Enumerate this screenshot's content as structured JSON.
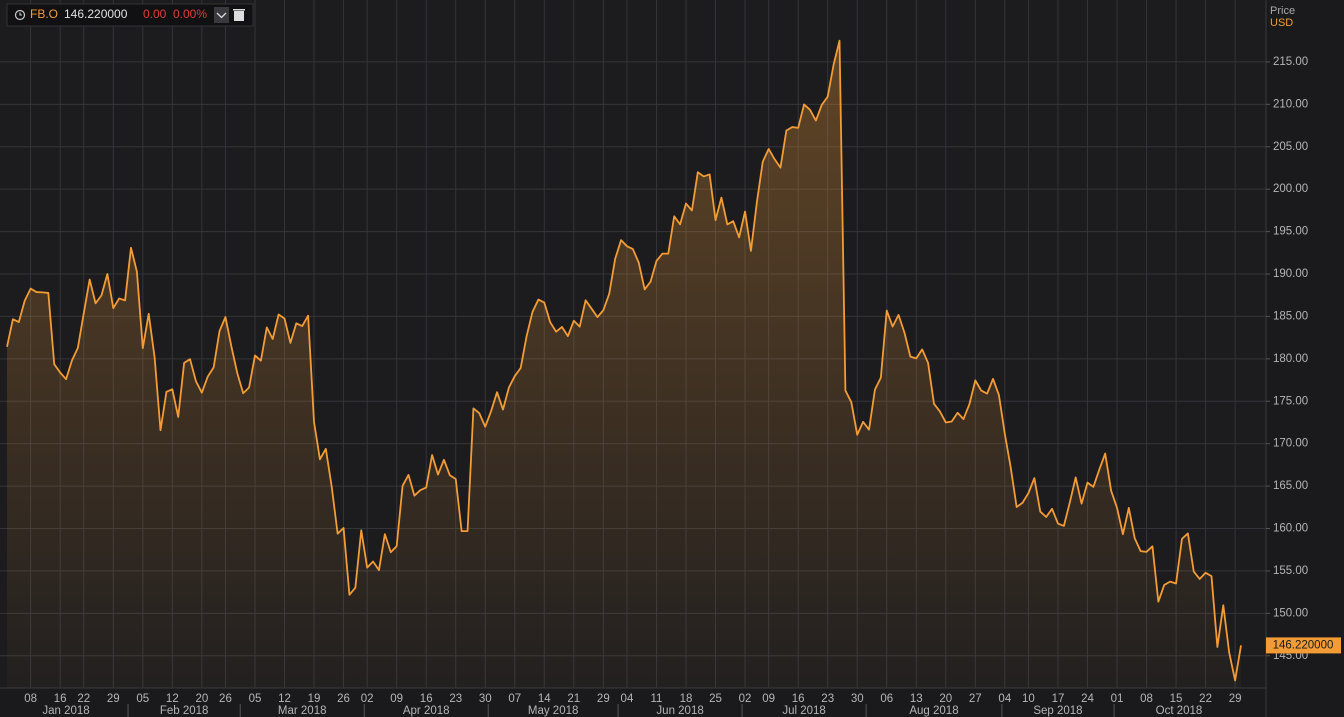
{
  "header": {
    "symbol": "FB.O",
    "price": "146.220000",
    "change": "0.00",
    "change_pct": "0.00%"
  },
  "chart_data": {
    "type": "area-line",
    "y_axis_label": "Price",
    "currency": "USD",
    "grid": true,
    "ylim": [
      141.2,
      222.3
    ],
    "yticks": [
      {
        "value": 145,
        "label": "145.00"
      },
      {
        "value": 150,
        "label": "150.00"
      },
      {
        "value": 155,
        "label": "155.00"
      },
      {
        "value": 160,
        "label": "160.00"
      },
      {
        "value": 165,
        "label": "165.00"
      },
      {
        "value": 170,
        "label": "170.00"
      },
      {
        "value": 175,
        "label": "175.00"
      },
      {
        "value": 180,
        "label": "180.00"
      },
      {
        "value": 185,
        "label": "185.00"
      },
      {
        "value": 190,
        "label": "190.00"
      },
      {
        "value": 195,
        "label": "195.00"
      },
      {
        "value": 200,
        "label": "200.00"
      },
      {
        "value": 205,
        "label": "205.00"
      },
      {
        "value": 210,
        "label": "210.00"
      },
      {
        "value": 215,
        "label": "215.00"
      }
    ],
    "xticks": [
      {
        "value": "2018-01-08",
        "label": "08"
      },
      {
        "value": "2018-01-16",
        "label": "16"
      },
      {
        "value": "2018-01-22",
        "label": "22"
      },
      {
        "value": "2018-01-29",
        "label": "29"
      },
      {
        "value": "2018-02-05",
        "label": "05"
      },
      {
        "value": "2018-02-12",
        "label": "12"
      },
      {
        "value": "2018-02-20",
        "label": "20"
      },
      {
        "value": "2018-02-26",
        "label": "26"
      },
      {
        "value": "2018-03-05",
        "label": "05"
      },
      {
        "value": "2018-03-12",
        "label": "12"
      },
      {
        "value": "2018-03-19",
        "label": "19"
      },
      {
        "value": "2018-03-26",
        "label": "26"
      },
      {
        "value": "2018-04-02",
        "label": "02"
      },
      {
        "value": "2018-04-09",
        "label": "09"
      },
      {
        "value": "2018-04-16",
        "label": "16"
      },
      {
        "value": "2018-04-23",
        "label": "23"
      },
      {
        "value": "2018-04-30",
        "label": "30"
      },
      {
        "value": "2018-05-07",
        "label": "07"
      },
      {
        "value": "2018-05-14",
        "label": "14"
      },
      {
        "value": "2018-05-21",
        "label": "21"
      },
      {
        "value": "2018-05-29",
        "label": "29"
      },
      {
        "value": "2018-06-04",
        "label": "04"
      },
      {
        "value": "2018-06-11",
        "label": "11"
      },
      {
        "value": "2018-06-18",
        "label": "18"
      },
      {
        "value": "2018-06-25",
        "label": "25"
      },
      {
        "value": "2018-07-02",
        "label": "02"
      },
      {
        "value": "2018-07-09",
        "label": "09"
      },
      {
        "value": "2018-07-16",
        "label": "16"
      },
      {
        "value": "2018-07-23",
        "label": "23"
      },
      {
        "value": "2018-07-30",
        "label": "30"
      },
      {
        "value": "2018-08-06",
        "label": "06"
      },
      {
        "value": "2018-08-13",
        "label": "13"
      },
      {
        "value": "2018-08-20",
        "label": "20"
      },
      {
        "value": "2018-08-27",
        "label": "27"
      },
      {
        "value": "2018-09-04",
        "label": "04"
      },
      {
        "value": "2018-09-10",
        "label": "10"
      },
      {
        "value": "2018-09-17",
        "label": "17"
      },
      {
        "value": "2018-09-24",
        "label": "24"
      },
      {
        "value": "2018-10-01",
        "label": "01"
      },
      {
        "value": "2018-10-08",
        "label": "08"
      },
      {
        "value": "2018-10-15",
        "label": "15"
      },
      {
        "value": "2018-10-22",
        "label": "22"
      },
      {
        "value": "2018-10-29",
        "label": "29"
      }
    ],
    "months": [
      {
        "value": "2018-01",
        "label": "Jan 2018"
      },
      {
        "value": "2018-02",
        "label": "Feb 2018"
      },
      {
        "value": "2018-03",
        "label": "Mar 2018"
      },
      {
        "value": "2018-04",
        "label": "Apr 2018"
      },
      {
        "value": "2018-05",
        "label": "May 2018"
      },
      {
        "value": "2018-06",
        "label": "Jun 2018"
      },
      {
        "value": "2018-07",
        "label": "Jul 2018"
      },
      {
        "value": "2018-08",
        "label": "Aug 2018"
      },
      {
        "value": "2018-09",
        "label": "Sep 2018"
      },
      {
        "value": "2018-10",
        "label": "Oct 2018"
      }
    ],
    "x": [
      "2018-01-02",
      "2018-01-03",
      "2018-01-04",
      "2018-01-05",
      "2018-01-08",
      "2018-01-09",
      "2018-01-10",
      "2018-01-11",
      "2018-01-12",
      "2018-01-16",
      "2018-01-17",
      "2018-01-18",
      "2018-01-19",
      "2018-01-22",
      "2018-01-23",
      "2018-01-24",
      "2018-01-25",
      "2018-01-26",
      "2018-01-29",
      "2018-01-30",
      "2018-01-31",
      "2018-02-01",
      "2018-02-02",
      "2018-02-05",
      "2018-02-06",
      "2018-02-07",
      "2018-02-08",
      "2018-02-09",
      "2018-02-12",
      "2018-02-13",
      "2018-02-14",
      "2018-02-15",
      "2018-02-16",
      "2018-02-20",
      "2018-02-21",
      "2018-02-22",
      "2018-02-23",
      "2018-02-26",
      "2018-02-27",
      "2018-02-28",
      "2018-03-01",
      "2018-03-02",
      "2018-03-05",
      "2018-03-06",
      "2018-03-07",
      "2018-03-08",
      "2018-03-09",
      "2018-03-12",
      "2018-03-13",
      "2018-03-14",
      "2018-03-15",
      "2018-03-16",
      "2018-03-19",
      "2018-03-20",
      "2018-03-21",
      "2018-03-22",
      "2018-03-23",
      "2018-03-26",
      "2018-03-27",
      "2018-03-28",
      "2018-03-29",
      "2018-04-02",
      "2018-04-03",
      "2018-04-04",
      "2018-04-05",
      "2018-04-06",
      "2018-04-09",
      "2018-04-10",
      "2018-04-11",
      "2018-04-12",
      "2018-04-13",
      "2018-04-16",
      "2018-04-17",
      "2018-04-18",
      "2018-04-19",
      "2018-04-20",
      "2018-04-23",
      "2018-04-24",
      "2018-04-25",
      "2018-04-26",
      "2018-04-27",
      "2018-04-30",
      "2018-05-01",
      "2018-05-02",
      "2018-05-03",
      "2018-05-04",
      "2018-05-07",
      "2018-05-08",
      "2018-05-09",
      "2018-05-10",
      "2018-05-11",
      "2018-05-14",
      "2018-05-15",
      "2018-05-16",
      "2018-05-17",
      "2018-05-18",
      "2018-05-21",
      "2018-05-22",
      "2018-05-23",
      "2018-05-24",
      "2018-05-25",
      "2018-05-29",
      "2018-05-30",
      "2018-05-31",
      "2018-06-01",
      "2018-06-04",
      "2018-06-05",
      "2018-06-06",
      "2018-06-07",
      "2018-06-08",
      "2018-06-11",
      "2018-06-12",
      "2018-06-13",
      "2018-06-14",
      "2018-06-15",
      "2018-06-18",
      "2018-06-19",
      "2018-06-20",
      "2018-06-21",
      "2018-06-22",
      "2018-06-25",
      "2018-06-26",
      "2018-06-27",
      "2018-06-28",
      "2018-06-29",
      "2018-07-02",
      "2018-07-03",
      "2018-07-05",
      "2018-07-06",
      "2018-07-09",
      "2018-07-10",
      "2018-07-11",
      "2018-07-12",
      "2018-07-13",
      "2018-07-16",
      "2018-07-17",
      "2018-07-18",
      "2018-07-19",
      "2018-07-20",
      "2018-07-23",
      "2018-07-24",
      "2018-07-25",
      "2018-07-26",
      "2018-07-27",
      "2018-07-30",
      "2018-07-31",
      "2018-08-01",
      "2018-08-02",
      "2018-08-03",
      "2018-08-06",
      "2018-08-07",
      "2018-08-08",
      "2018-08-09",
      "2018-08-10",
      "2018-08-13",
      "2018-08-14",
      "2018-08-15",
      "2018-08-16",
      "2018-08-17",
      "2018-08-20",
      "2018-08-21",
      "2018-08-22",
      "2018-08-23",
      "2018-08-24",
      "2018-08-27",
      "2018-08-28",
      "2018-08-29",
      "2018-08-30",
      "2018-08-31",
      "2018-09-04",
      "2018-09-05",
      "2018-09-06",
      "2018-09-07",
      "2018-09-10",
      "2018-09-11",
      "2018-09-12",
      "2018-09-13",
      "2018-09-14",
      "2018-09-17",
      "2018-09-18",
      "2018-09-19",
      "2018-09-20",
      "2018-09-21",
      "2018-09-24",
      "2018-09-25",
      "2018-09-26",
      "2018-09-27",
      "2018-09-28",
      "2018-10-01",
      "2018-10-02",
      "2018-10-03",
      "2018-10-04",
      "2018-10-05",
      "2018-10-08",
      "2018-10-09",
      "2018-10-10",
      "2018-10-11",
      "2018-10-12",
      "2018-10-15",
      "2018-10-16",
      "2018-10-17",
      "2018-10-18",
      "2018-10-19",
      "2018-10-22",
      "2018-10-23",
      "2018-10-24",
      "2018-10-25",
      "2018-10-26",
      "2018-10-29",
      "2018-10-30"
    ],
    "series": [
      {
        "name": "FB.O",
        "color": "#f39c35",
        "values": [
          181.42,
          184.67,
          184.33,
          186.85,
          188.28,
          187.87,
          187.84,
          187.77,
          179.37,
          178.39,
          177.6,
          179.8,
          181.29,
          185.37,
          189.35,
          186.55,
          187.48,
          190.0,
          185.98,
          187.12,
          186.89,
          193.09,
          190.28,
          181.26,
          185.31,
          180.18,
          171.58,
          176.11,
          176.41,
          173.15,
          179.52,
          179.96,
          177.36,
          176.01,
          177.91,
          178.99,
          183.29,
          184.93,
          181.46,
          178.32,
          175.94,
          176.62,
          180.4,
          179.78,
          183.71,
          182.34,
          185.23,
          184.76,
          181.88,
          184.19,
          183.86,
          185.09,
          172.56,
          168.15,
          169.39,
          164.89,
          159.39,
          160.06,
          152.19,
          153.03,
          159.79,
          155.39,
          156.11,
          155.1,
          159.34,
          157.2,
          157.93,
          165.04,
          166.32,
          163.87,
          164.52,
          164.83,
          168.66,
          166.36,
          168.1,
          166.28,
          165.84,
          159.69,
          159.69,
          174.16,
          173.59,
          172.0,
          173.86,
          176.07,
          174.02,
          176.61,
          177.97,
          178.92,
          182.66,
          185.53,
          186.99,
          186.64,
          184.32,
          183.2,
          183.76,
          182.68,
          184.49,
          183.8,
          186.9,
          185.93,
          184.92,
          185.74,
          187.67,
          191.78,
          193.99,
          193.28,
          192.94,
          191.34,
          188.18,
          189.1,
          191.54,
          192.4,
          192.41,
          196.81,
          195.85,
          198.31,
          197.49,
          202.0,
          201.5,
          201.74,
          196.35,
          199.0,
          195.84,
          196.23,
          194.32,
          197.36,
          192.73,
          198.45,
          203.23,
          204.74,
          203.54,
          202.54,
          206.92,
          207.32,
          207.23,
          209.99,
          209.36,
          208.09,
          209.94,
          210.91,
          214.67,
          217.5,
          176.26,
          174.89,
          171.06,
          172.58,
          171.65,
          176.37,
          177.78,
          185.69,
          183.81,
          185.18,
          183.09,
          180.26,
          180.05,
          181.11,
          179.53,
          174.7,
          173.8,
          172.5,
          172.62,
          173.64,
          172.9,
          174.65,
          177.46,
          176.26,
          175.9,
          177.64,
          175.73,
          171.16,
          167.18,
          162.53,
          163.04,
          164.18,
          165.94,
          162.0,
          161.36,
          162.32,
          160.58,
          160.3,
          163.06,
          166.02,
          162.93,
          165.41,
          164.91,
          166.95,
          168.84,
          164.46,
          162.44,
          159.33,
          162.43,
          158.85,
          157.33,
          157.25,
          157.9,
          151.38,
          153.35,
          153.74,
          153.52,
          158.78,
          159.42,
          154.92,
          154.05,
          154.78,
          154.39,
          146.04,
          150.95,
          145.37,
          142.09,
          146.22
        ]
      }
    ]
  }
}
